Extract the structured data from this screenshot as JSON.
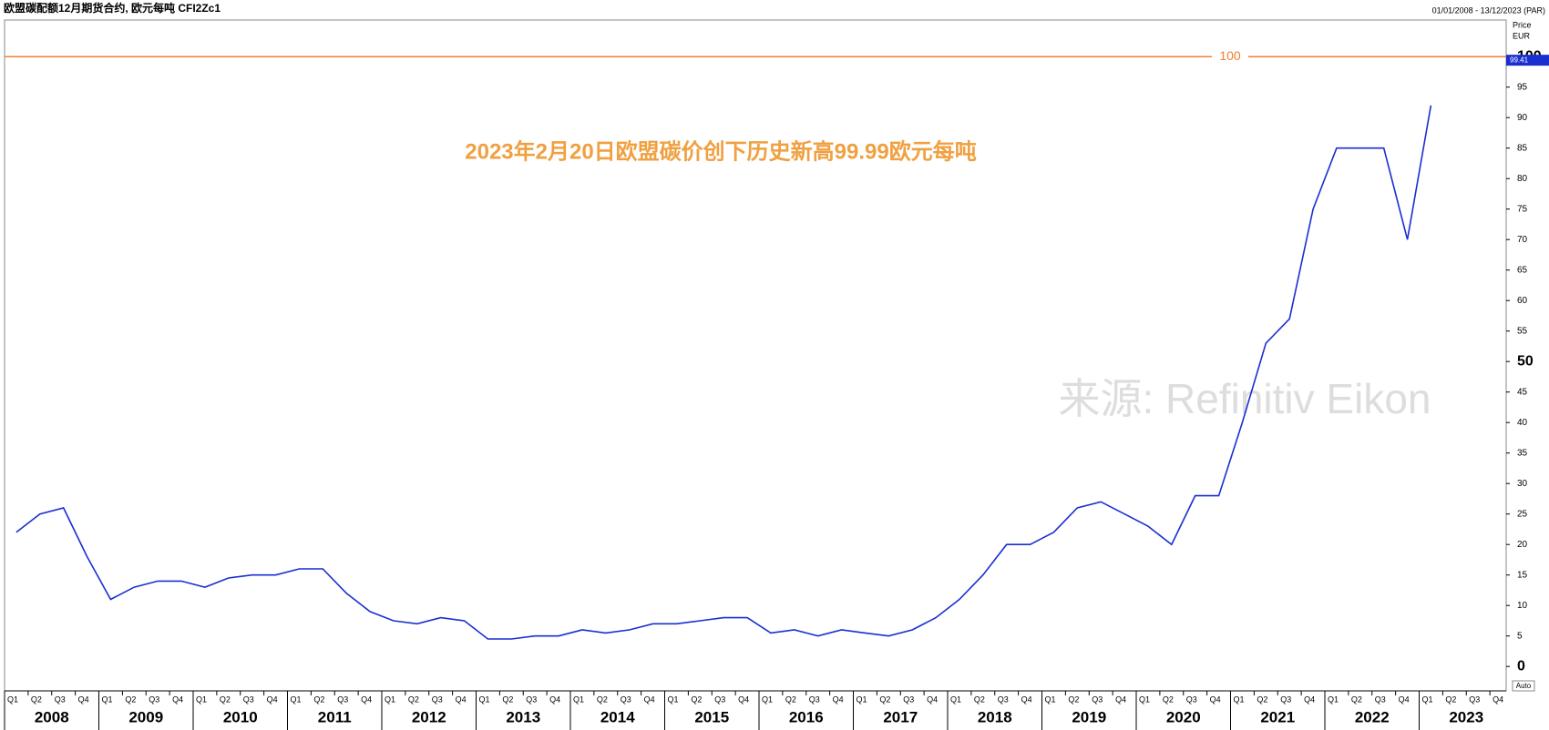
{
  "chart_data": {
    "type": "line",
    "title": "欧盟碳配额12月期货合约, 欧元每吨 CFI2Zc1",
    "date_range": "01/01/2008 - 13/12/2023 (PAR)",
    "y_axis_label": "Price",
    "y_axis_unit": "EUR",
    "auto_label": "Auto",
    "annotation": "2023年2月20日欧盟碳价创下历史新高99.99欧元每吨",
    "watermark": "来源: Refinitiv Eikon",
    "reference_line": {
      "value": 100,
      "color": "#f08030"
    },
    "last_value": 99.41,
    "years": [
      "2008",
      "2009",
      "2010",
      "2011",
      "2012",
      "2013",
      "2014",
      "2015",
      "2016",
      "2017",
      "2018",
      "2019",
      "2020",
      "2021",
      "2022",
      "2023"
    ],
    "quarters": [
      "Q1",
      "Q2",
      "Q3",
      "Q4"
    ],
    "series": [
      {
        "name": "CFI2Zc1",
        "color": "#1a2fd0",
        "values": [
          22,
          25,
          26,
          18,
          11,
          13,
          14,
          14,
          13,
          14.5,
          15,
          15,
          16,
          16,
          12,
          9,
          7.5,
          7,
          8,
          7.5,
          4.5,
          4.5,
          5,
          5,
          6,
          5.5,
          6,
          7,
          7,
          7.5,
          8,
          8,
          5.5,
          6,
          5,
          6,
          5.5,
          5,
          6,
          8,
          11,
          15,
          20,
          20,
          22,
          26,
          27,
          25,
          23,
          20,
          28,
          28,
          40,
          53,
          57,
          75,
          85,
          85,
          85,
          70,
          92,
          null,
          null,
          null
        ]
      }
    ],
    "ylim": [
      -4,
      106
    ],
    "yticks": [
      0,
      5,
      10,
      15,
      20,
      25,
      30,
      35,
      40,
      45,
      50,
      55,
      60,
      65,
      70,
      75,
      80,
      85,
      90,
      95,
      100
    ]
  }
}
